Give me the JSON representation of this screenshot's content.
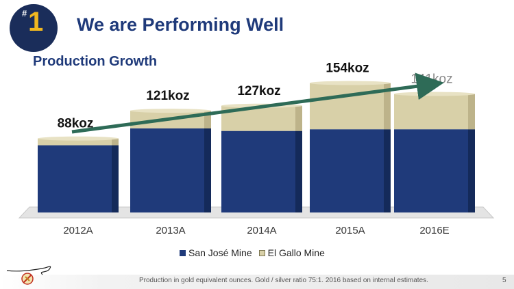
{
  "header": {
    "badge_hash": "#",
    "badge_number": "1",
    "title": "We are Performing Well"
  },
  "subtitle": "Production Growth",
  "colors": {
    "navy": "#1f3a7a",
    "san_jose": "#1f3a7a",
    "el_gallo": "#d8d0a8",
    "arrow": "#2e6b57",
    "badge_bg": "#1a2d5a",
    "badge_accent": "#f0b820"
  },
  "chart_data": {
    "type": "bar",
    "stacked": true,
    "categories": [
      "2012A",
      "2013A",
      "2014A",
      "2015A",
      "2016E"
    ],
    "series": [
      {
        "name": "San José Mine",
        "values": [
          80,
          100,
          97,
          99,
          99
        ]
      },
      {
        "name": "El Gallo Mine",
        "values": [
          8,
          21,
          30,
          55,
          42
        ]
      }
    ],
    "totals": [
      88,
      121,
      127,
      154,
      141
    ],
    "data_labels": [
      "88koz",
      "121koz",
      "127koz",
      "154koz",
      "141koz"
    ],
    "ylim": [
      0,
      165
    ],
    "grid": false,
    "legend": "bottom",
    "annotation": "trend arrow from 2012A to 2016E"
  },
  "legend": {
    "items": [
      {
        "label": "San José Mine"
      },
      {
        "label": "El Gallo Mine"
      }
    ]
  },
  "footer": {
    "note": "Production in gold equivalent ounces. Gold / silver ratio 75:1. 2016 based on internal estimates.",
    "page": "5"
  }
}
